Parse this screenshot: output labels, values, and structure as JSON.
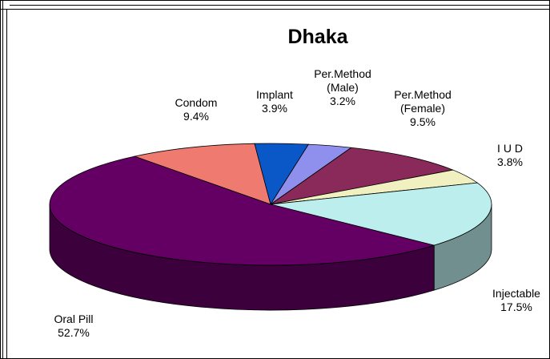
{
  "chart_data": {
    "type": "pie",
    "title": "Dhaka",
    "categories": [
      "Condom",
      "Implant",
      "Per.Method (Male)",
      "Per.Method (Female)",
      "I U D",
      "Injectable",
      "Oral Pill"
    ],
    "values": [
      9.4,
      3.9,
      3.2,
      9.5,
      3.8,
      17.5,
      52.7
    ],
    "value_labels": [
      "9.4%",
      "3.9%",
      "3.2%",
      "9.5%",
      "3.8%",
      "17.5%",
      "52.7%"
    ],
    "colors": [
      "#ee7a70",
      "#0a58c8",
      "#8f8fee",
      "#8a2a5a",
      "#f0f0c0",
      "#bdeeee",
      "#640064"
    ]
  }
}
